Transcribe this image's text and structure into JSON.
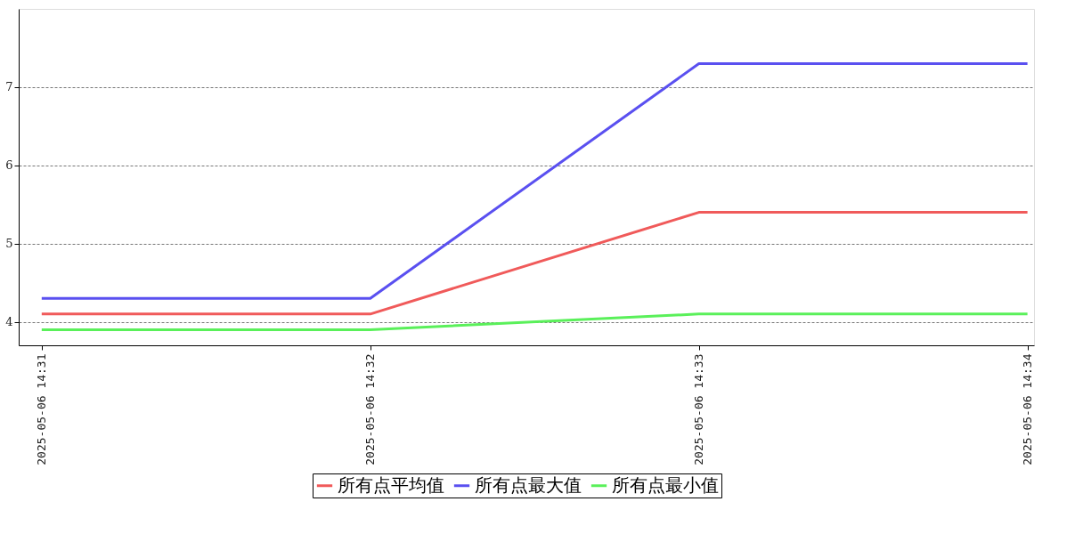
{
  "chart_data": {
    "type": "line",
    "categories": [
      "2025-05-06 14:31",
      "2025-05-06 14:32",
      "2025-05-06 14:33",
      "2025-05-06 14:34"
    ],
    "series": [
      {
        "name": "所有点平均值",
        "color": "#f05a5a",
        "values": [
          4.1,
          4.1,
          5.4,
          5.4
        ]
      },
      {
        "name": "所有点最大值",
        "color": "#5a50f0",
        "values": [
          4.3,
          4.3,
          7.3,
          7.3
        ]
      },
      {
        "name": "所有点最小值",
        "color": "#5af05a",
        "values": [
          3.9,
          3.9,
          4.1,
          4.1
        ]
      }
    ],
    "ylim": [
      3.7,
      8.0
    ],
    "yticks": [
      4,
      5,
      6,
      7
    ],
    "grid": "y",
    "legend": "bottom",
    "marker": "none",
    "line_style": "solid"
  }
}
